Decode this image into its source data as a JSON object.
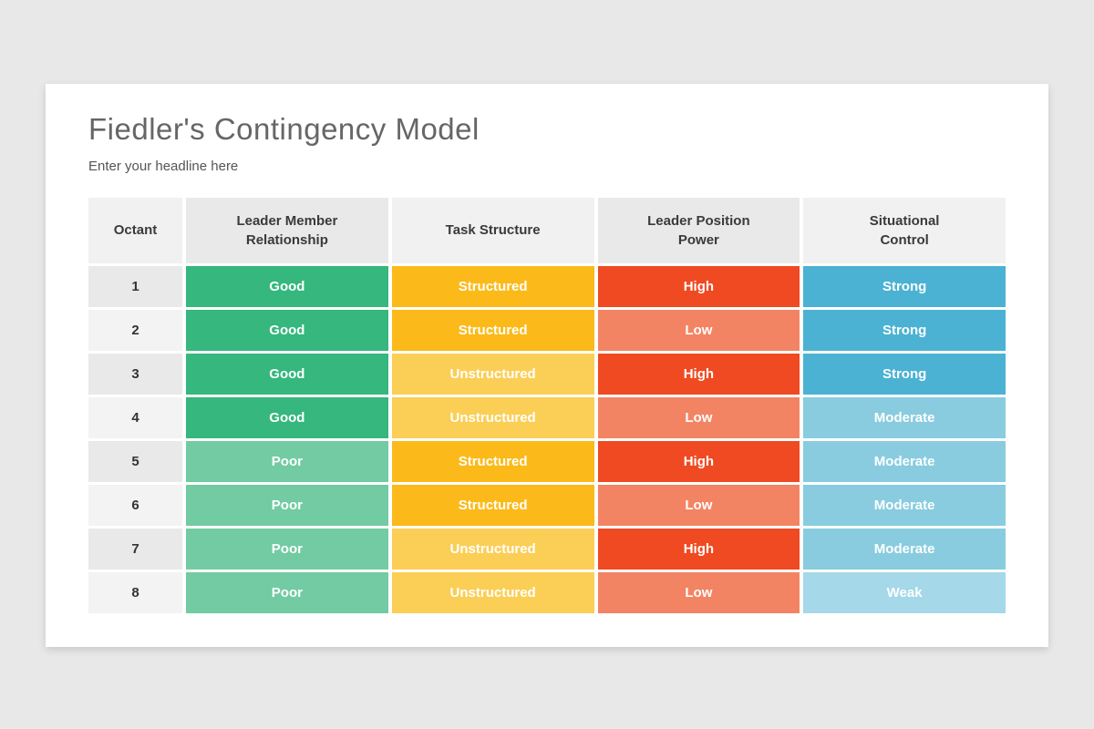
{
  "page": {
    "background_color": "#e8e8e8",
    "card_color": "#ffffff"
  },
  "header": {
    "title": "Fiedler's Contingency Model",
    "subtitle": "Enter your headline here"
  },
  "table": {
    "columns": [
      {
        "line1": "Octant",
        "line2": ""
      },
      {
        "line1": "Leader Member",
        "line2": "Relationship"
      },
      {
        "line1": "Task Structure",
        "line2": ""
      },
      {
        "line1": "Leader Position",
        "line2": "Power"
      },
      {
        "line1": "Situational",
        "line2": "Control"
      }
    ],
    "rows": [
      {
        "octant": "1",
        "relationship": "Good",
        "task": "Structured",
        "power": "High",
        "control": "Strong"
      },
      {
        "octant": "2",
        "relationship": "Good",
        "task": "Structured",
        "power": "Low",
        "control": "Strong"
      },
      {
        "octant": "3",
        "relationship": "Good",
        "task": "Unstructured",
        "power": "High",
        "control": "Strong"
      },
      {
        "octant": "4",
        "relationship": "Good",
        "task": "Unstructured",
        "power": "Low",
        "control": "Moderate"
      },
      {
        "octant": "5",
        "relationship": "Poor",
        "task": "Structured",
        "power": "High",
        "control": "Moderate"
      },
      {
        "octant": "6",
        "relationship": "Poor",
        "task": "Structured",
        "power": "Low",
        "control": "Moderate"
      },
      {
        "octant": "7",
        "relationship": "Poor",
        "task": "Unstructured",
        "power": "High",
        "control": "Moderate"
      },
      {
        "octant": "8",
        "relationship": "Poor",
        "task": "Unstructured",
        "power": "Low",
        "control": "Weak"
      }
    ]
  },
  "colors": {
    "Good": "#35b77e",
    "Poor": "#72cba2",
    "Structured": "#fbba19",
    "Unstructured": "#fbce55",
    "High": "#ef4a21",
    "Low": "#f38463",
    "Strong": "#4bb2d3",
    "Moderate": "#89cce0",
    "Weak": "#a5d8e8"
  }
}
